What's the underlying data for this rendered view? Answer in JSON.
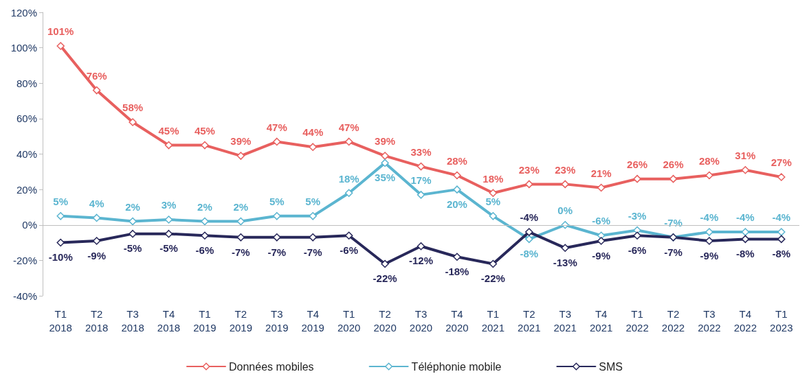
{
  "chart_data": {
    "type": "line",
    "categories": [
      "T1\n2018",
      "T2\n2018",
      "T3\n2018",
      "T4\n2018",
      "T1\n2019",
      "T2\n2019",
      "T3\n2019",
      "T4\n2019",
      "T1\n2020",
      "T2\n2020",
      "T3\n2020",
      "T4\n2020",
      "T1\n2021",
      "T2\n2021",
      "T3\n2021",
      "T4\n2021",
      "T1\n2022",
      "T2\n2022",
      "T3\n2022",
      "T4\n2022",
      "T1\n2023"
    ],
    "series": [
      {
        "name": "Données mobiles",
        "color": "#e8605f",
        "values": [
          101,
          76,
          58,
          45,
          45,
          39,
          47,
          44,
          47,
          39,
          33,
          28,
          18,
          23,
          23,
          21,
          26,
          26,
          28,
          31,
          27
        ],
        "value_labels": [
          "101%",
          "76%",
          "58%",
          "45%",
          "45%",
          "39%",
          "47%",
          "44%",
          "47%",
          "39%",
          "33%",
          "28%",
          "18%",
          "23%",
          "23%",
          "21%",
          "26%",
          "26%",
          "28%",
          "31%",
          "27%"
        ]
      },
      {
        "name": "Téléphonie mobile",
        "color": "#5bb5d0",
        "values": [
          5,
          4,
          2,
          3,
          2,
          2,
          5,
          5,
          18,
          35,
          17,
          20,
          5,
          -8,
          0,
          -6,
          -3,
          -7,
          -4,
          -4,
          -4
        ],
        "value_labels": [
          "5%",
          "4%",
          "2%",
          "3%",
          "2%",
          "2%",
          "5%",
          "5%",
          "18%",
          "35%",
          "17%",
          "20%",
          "5%",
          "-8%",
          "0%",
          "-6%",
          "-3%",
          "-7%",
          "-4%",
          "-4%",
          "-4%"
        ]
      },
      {
        "name": "SMS",
        "color": "#28285a",
        "values": [
          -10,
          -9,
          -5,
          -5,
          -6,
          -7,
          -7,
          -7,
          -6,
          -22,
          -12,
          -18,
          -22,
          -4,
          -13,
          -9,
          -6,
          -7,
          -9,
          -8,
          -8
        ],
        "value_labels": [
          "-10%",
          "-9%",
          "-5%",
          "-5%",
          "-6%",
          "-7%",
          "-7%",
          "-7%",
          "-6%",
          "-22%",
          "-12%",
          "-18%",
          "-22%",
          "-4%",
          "-13%",
          "-9%",
          "-6%",
          "-7%",
          "-9%",
          "-8%",
          "-8%"
        ]
      }
    ],
    "ylim": [
      -40,
      120
    ],
    "yticks": [
      {
        "value": -40,
        "label": "-40%"
      },
      {
        "value": -20,
        "label": "-20%"
      },
      {
        "value": 0,
        "label": "0%"
      },
      {
        "value": 20,
        "label": "20%"
      },
      {
        "value": 40,
        "label": "40%"
      },
      {
        "value": 60,
        "label": "60%"
      },
      {
        "value": 80,
        "label": "80%"
      },
      {
        "value": 100,
        "label": "100%"
      },
      {
        "value": 120,
        "label": "120%"
      }
    ],
    "ref_lines": [
      {
        "axis": "y",
        "value": 0,
        "color": "#bfbfbf"
      }
    ],
    "grid": false,
    "legend": "bottom",
    "marker": "diamond",
    "line_style": "solid"
  }
}
